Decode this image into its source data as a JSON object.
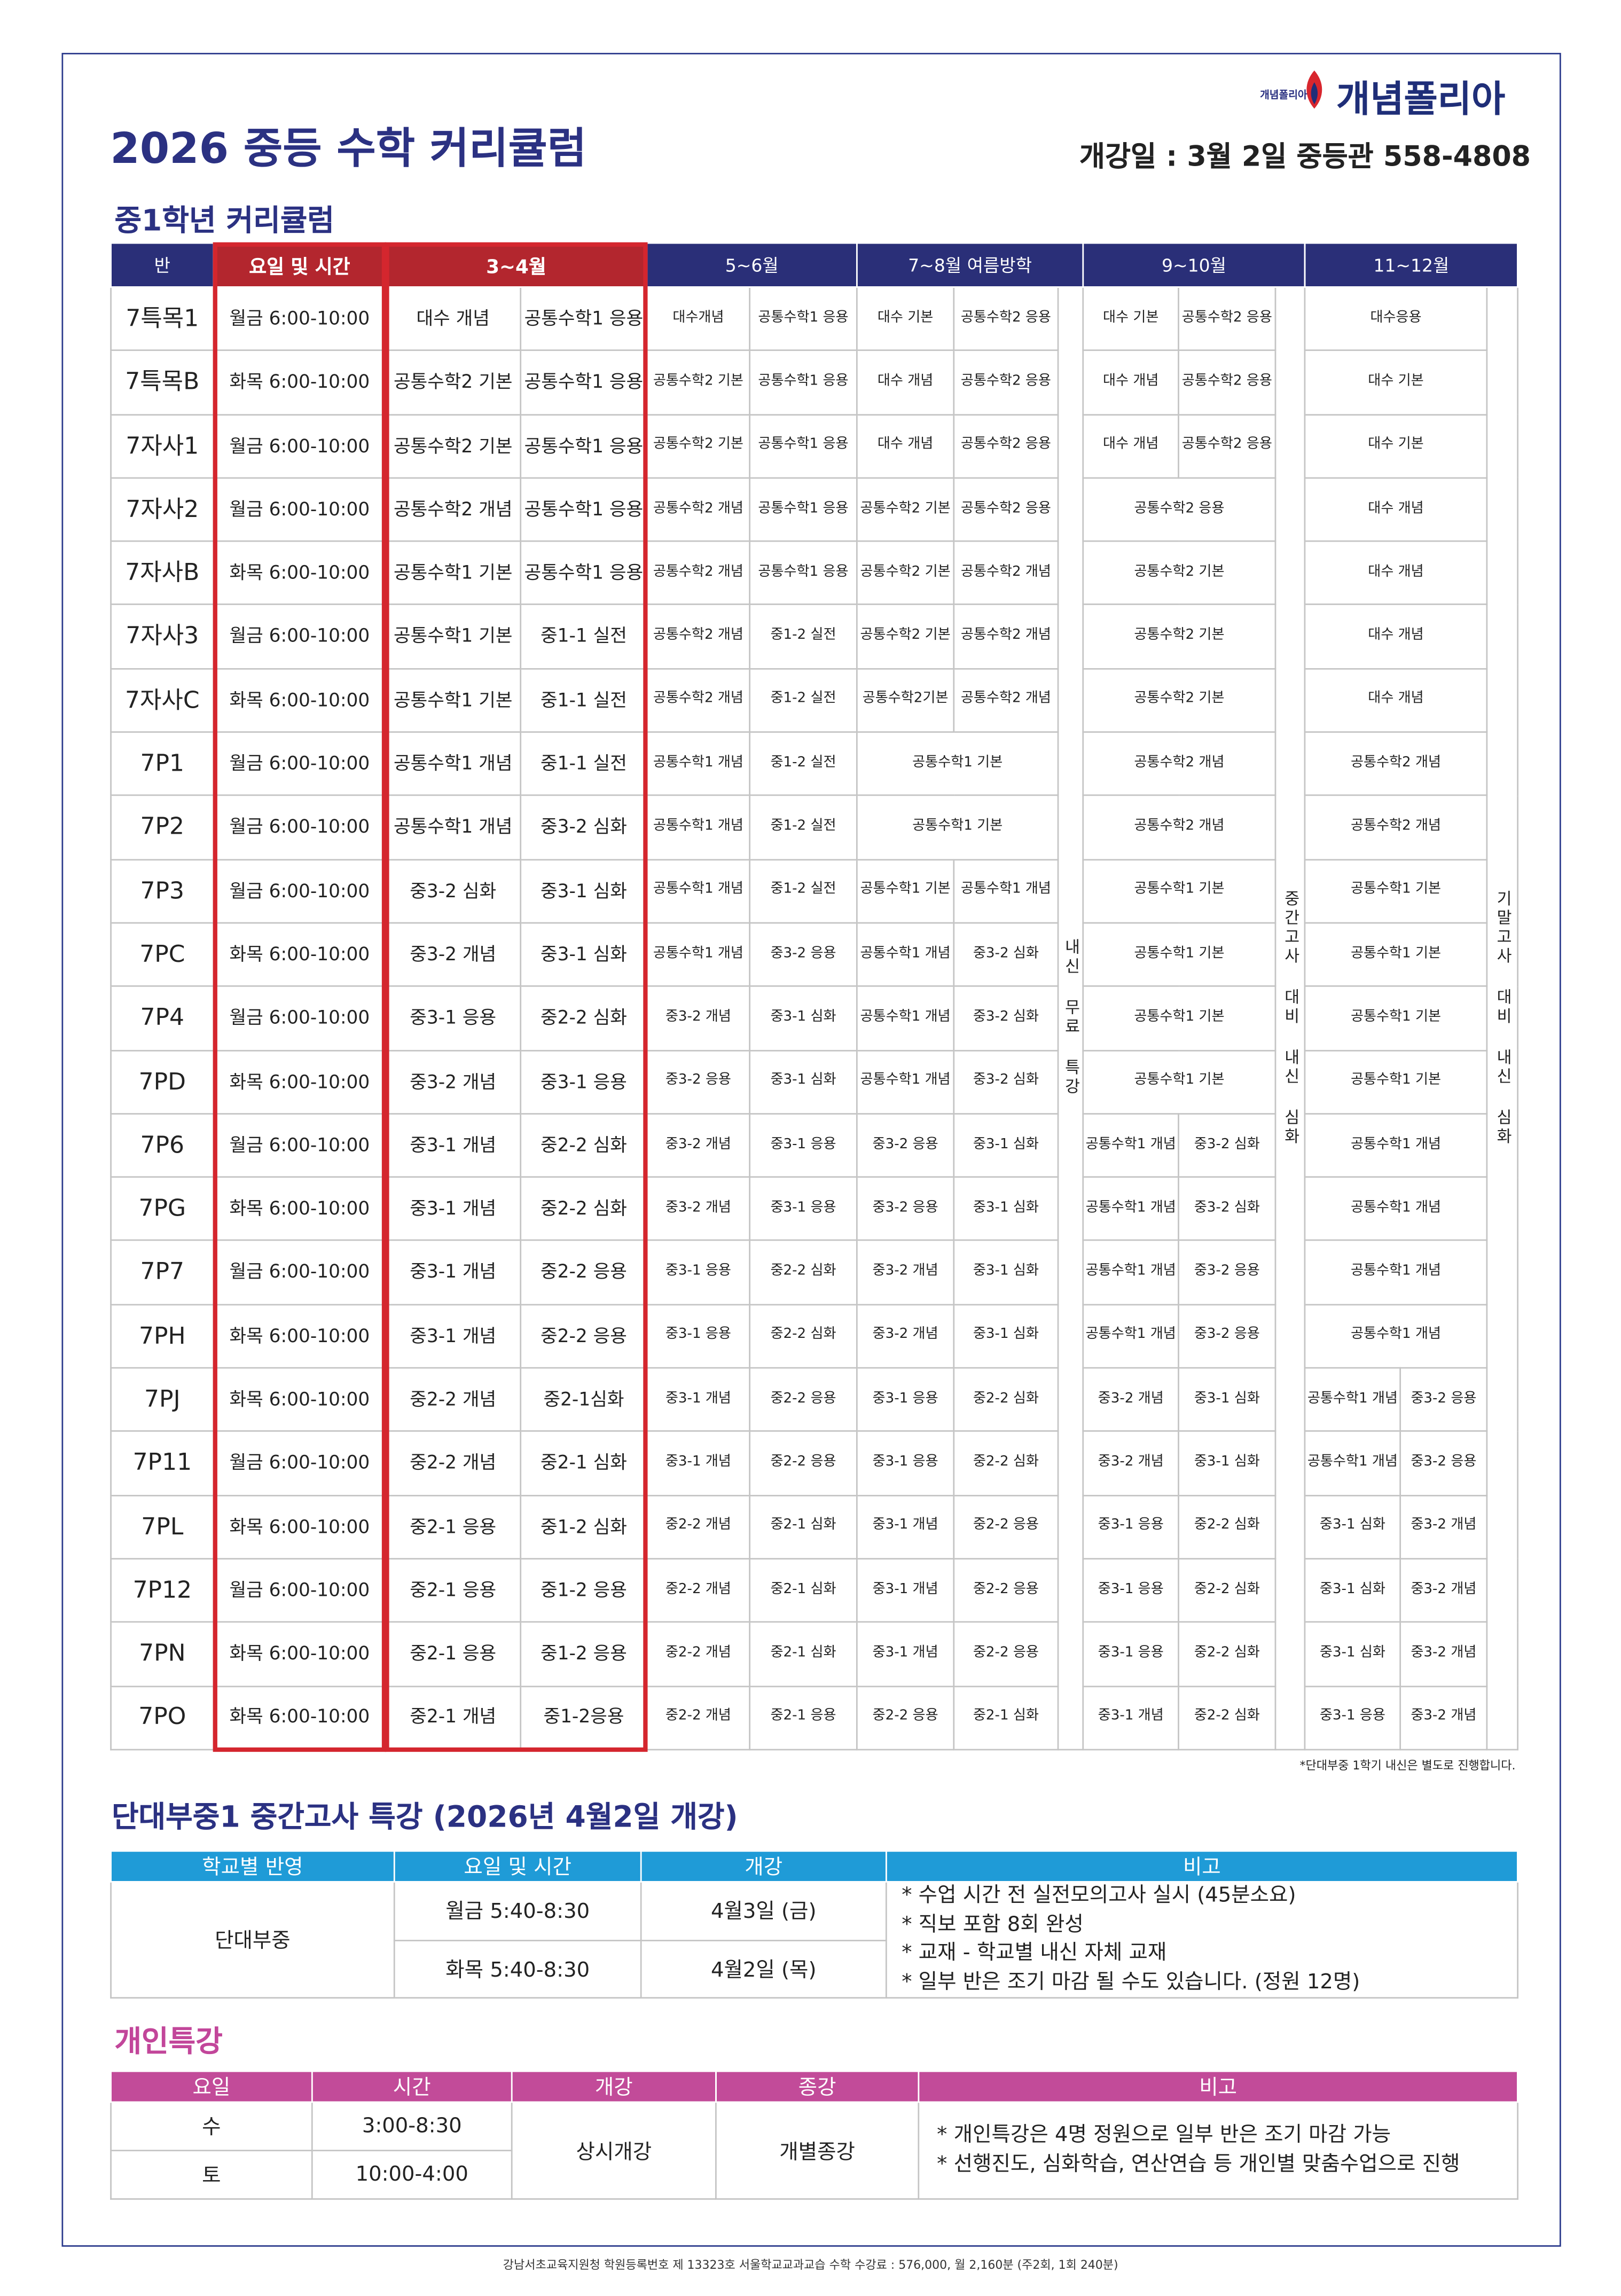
{
  "header": {
    "title": "2026 중등 수학 커리큘럼",
    "logo_small": "개념폴리아",
    "logo": "개념폴리아",
    "open_info": "개강일 : 3월 2일 중등관 558-4808"
  },
  "curriculum": {
    "title": "중1학년 커리큘럼",
    "columns": [
      "반",
      "요일 및 시간",
      "3~4월",
      "5~6월",
      "7~8월 여름방학",
      "9~10월",
      "11~12월"
    ],
    "vertical_notes": [
      "내신 무료 특강",
      "중간고사 대비 내신 심화",
      "기말고사 대비 내신 심화"
    ],
    "rows": [
      {
        "class": "7특목1",
        "time": "월금 6:00-10:00",
        "periods": [
          [
            "대수 개념",
            "공통수학1 응용"
          ],
          [
            "대수개념",
            "공통수학1 응용"
          ],
          [
            "대수 기본",
            "공통수학2 응용"
          ],
          [
            "대수 기본",
            "공통수학2 응용"
          ],
          [
            "대수응용"
          ]
        ]
      },
      {
        "class": "7특목B",
        "time": "화목 6:00-10:00",
        "periods": [
          [
            "공통수학2 기본",
            "공통수학1 응용"
          ],
          [
            "공통수학2 기본",
            "공통수학1 응용"
          ],
          [
            "대수 개념",
            "공통수학2 응용"
          ],
          [
            "대수 개념",
            "공통수학2 응용"
          ],
          [
            "대수 기본"
          ]
        ]
      },
      {
        "class": "7자사1",
        "time": "월금 6:00-10:00",
        "periods": [
          [
            "공통수학2 기본",
            "공통수학1 응용"
          ],
          [
            "공통수학2 기본",
            "공통수학1 응용"
          ],
          [
            "대수 개념",
            "공통수학2 응용"
          ],
          [
            "대수 개념",
            "공통수학2 응용"
          ],
          [
            "대수 기본"
          ]
        ]
      },
      {
        "class": "7자사2",
        "time": "월금 6:00-10:00",
        "periods": [
          [
            "공통수학2 개념",
            "공통수학1 응용"
          ],
          [
            "공통수학2 개념",
            "공통수학1 응용"
          ],
          [
            "공통수학2 기본",
            "공통수학2 응용"
          ],
          [
            "공통수학2 응용"
          ],
          [
            "대수 개념"
          ]
        ]
      },
      {
        "class": "7자사B",
        "time": "화목 6:00-10:00",
        "periods": [
          [
            "공통수학1 기본",
            "공통수학1 응용"
          ],
          [
            "공통수학2 개념",
            "공통수학1 응용"
          ],
          [
            "공통수학2 기본",
            "공통수학2 개념"
          ],
          [
            "공통수학2 기본"
          ],
          [
            "대수 개념"
          ]
        ]
      },
      {
        "class": "7자사3",
        "time": "월금 6:00-10:00",
        "periods": [
          [
            "공통수학1 기본",
            "중1-1 실전"
          ],
          [
            "공통수학2 개념",
            "중1-2 실전"
          ],
          [
            "공통수학2 기본",
            "공통수학2 개념"
          ],
          [
            "공통수학2 기본"
          ],
          [
            "대수 개념"
          ]
        ]
      },
      {
        "class": "7자사C",
        "time": "화목 6:00-10:00",
        "periods": [
          [
            "공통수학1 기본",
            "중1-1 실전"
          ],
          [
            "공통수학2 개념",
            "중1-2 실전"
          ],
          [
            "공통수학2기본",
            "공통수학2 개념"
          ],
          [
            "공통수학2 기본"
          ],
          [
            "대수 개념"
          ]
        ]
      },
      {
        "class": "7P1",
        "time": "월금 6:00-10:00",
        "periods": [
          [
            "공통수학1 개념",
            "중1-1 실전"
          ],
          [
            "공통수학1 개념",
            "중1-2 실전"
          ],
          [
            "공통수학1 기본"
          ],
          [
            "공통수학2 개념"
          ],
          [
            "공통수학2 개념"
          ]
        ]
      },
      {
        "class": "7P2",
        "time": "월금 6:00-10:00",
        "periods": [
          [
            "공통수학1 개념",
            "중3-2 심화"
          ],
          [
            "공통수학1 개념",
            "중1-2 실전"
          ],
          [
            "공통수학1 기본"
          ],
          [
            "공통수학2 개념"
          ],
          [
            "공통수학2 개념"
          ]
        ]
      },
      {
        "class": "7P3",
        "time": "월금 6:00-10:00",
        "periods": [
          [
            "중3-2 심화",
            "중3-1 심화"
          ],
          [
            "공통수학1 개념",
            "중1-2 실전"
          ],
          [
            "공통수학1 기본",
            "공통수학1 개념"
          ],
          [
            "공통수학1 기본"
          ],
          [
            "공통수학1 기본"
          ]
        ]
      },
      {
        "class": "7PC",
        "time": "화목 6:00-10:00",
        "periods": [
          [
            "중3-2 개념",
            "중3-1 심화"
          ],
          [
            "공통수학1 개념",
            "중3-2 응용"
          ],
          [
            "공통수학1 개념",
            "중3-2 심화"
          ],
          [
            "공통수학1 기본"
          ],
          [
            "공통수학1 기본"
          ]
        ]
      },
      {
        "class": "7P4",
        "time": "월금 6:00-10:00",
        "periods": [
          [
            "중3-1 응용",
            "중2-2 심화"
          ],
          [
            "중3-2 개념",
            "중3-1 심화"
          ],
          [
            "공통수학1 개념",
            "중3-2 심화"
          ],
          [
            "공통수학1 기본"
          ],
          [
            "공통수학1 기본"
          ]
        ]
      },
      {
        "class": "7PD",
        "time": "화목 6:00-10:00",
        "periods": [
          [
            "중3-2 개념",
            "중3-1 응용"
          ],
          [
            "중3-2 응용",
            "중3-1 심화"
          ],
          [
            "공통수학1 개념",
            "중3-2 심화"
          ],
          [
            "공통수학1 기본"
          ],
          [
            "공통수학1 기본"
          ]
        ]
      },
      {
        "class": "7P6",
        "time": "월금 6:00-10:00",
        "periods": [
          [
            "중3-1 개념",
            "중2-2 심화"
          ],
          [
            "중3-2 개념",
            "중3-1 응용"
          ],
          [
            "중3-2 응용",
            "중3-1 심화"
          ],
          [
            "공통수학1 개념",
            "중3-2 심화"
          ],
          [
            "공통수학1 개념"
          ]
        ]
      },
      {
        "class": "7PG",
        "time": "화목 6:00-10:00",
        "periods": [
          [
            "중3-1 개념",
            "중2-2 심화"
          ],
          [
            "중3-2 개념",
            "중3-1 응용"
          ],
          [
            "중3-2 응용",
            "중3-1 심화"
          ],
          [
            "공통수학1 개념",
            "중3-2 심화"
          ],
          [
            "공통수학1 개념"
          ]
        ]
      },
      {
        "class": "7P7",
        "time": "월금 6:00-10:00",
        "periods": [
          [
            "중3-1 개념",
            "중2-2 응용"
          ],
          [
            "중3-1 응용",
            "중2-2 심화"
          ],
          [
            "중3-2 개념",
            "중3-1 심화"
          ],
          [
            "공통수학1 개념",
            "중3-2 응용"
          ],
          [
            "공통수학1 개념"
          ]
        ]
      },
      {
        "class": "7PH",
        "time": "화목 6:00-10:00",
        "periods": [
          [
            "중3-1 개념",
            "중2-2 응용"
          ],
          [
            "중3-1 응용",
            "중2-2 심화"
          ],
          [
            "중3-2 개념",
            "중3-1 심화"
          ],
          [
            "공통수학1 개념",
            "중3-2 응용"
          ],
          [
            "공통수학1 개념"
          ]
        ]
      },
      {
        "class": "7PJ",
        "time": "화목 6:00-10:00",
        "periods": [
          [
            "중2-2 개념",
            "중2-1심화"
          ],
          [
            "중3-1 개념",
            "중2-2 응용"
          ],
          [
            "중3-1 응용",
            "중2-2 심화"
          ],
          [
            "중3-2 개념",
            "중3-1 심화"
          ],
          [
            "공통수학1 개념",
            "중3-2 응용"
          ]
        ]
      },
      {
        "class": "7P11",
        "time": "월금 6:00-10:00",
        "periods": [
          [
            "중2-2 개념",
            "중2-1 심화"
          ],
          [
            "중3-1 개념",
            "중2-2 응용"
          ],
          [
            "중3-1 응용",
            "중2-2 심화"
          ],
          [
            "중3-2 개념",
            "중3-1 심화"
          ],
          [
            "공통수학1 개념",
            "중3-2 응용"
          ]
        ]
      },
      {
        "class": "7PL",
        "time": "화목 6:00-10:00",
        "periods": [
          [
            "중2-1 응용",
            "중1-2 심화"
          ],
          [
            "중2-2 개념",
            "중2-1 심화"
          ],
          [
            "중3-1 개념",
            "중2-2 응용"
          ],
          [
            "중3-1 응용",
            "중2-2 심화"
          ],
          [
            "중3-1 심화",
            "중3-2 개념"
          ]
        ]
      },
      {
        "class": "7P12",
        "time": "월금 6:00-10:00",
        "periods": [
          [
            "중2-1 응용",
            "중1-2 응용"
          ],
          [
            "중2-2 개념",
            "중2-1 심화"
          ],
          [
            "중3-1 개념",
            "중2-2 응용"
          ],
          [
            "중3-1 응용",
            "중2-2 심화"
          ],
          [
            "중3-1 심화",
            "중3-2 개념"
          ]
        ]
      },
      {
        "class": "7PN",
        "time": "화목 6:00-10:00",
        "periods": [
          [
            "중2-1 응용",
            "중1-2 응용"
          ],
          [
            "중2-2 개념",
            "중2-1 심화"
          ],
          [
            "중3-1 개념",
            "중2-2 응용"
          ],
          [
            "중3-1 응용",
            "중2-2 심화"
          ],
          [
            "중3-1 심화",
            "중3-2 개념"
          ]
        ]
      },
      {
        "class": "7PO",
        "time": "화목 6:00-10:00",
        "periods": [
          [
            "중2-1 개념",
            "중1-2응용"
          ],
          [
            "중2-2 개념",
            "중2-1 응용"
          ],
          [
            "중2-2 응용",
            "중2-1 심화"
          ],
          [
            "중3-1 개념",
            "중2-2 심화"
          ],
          [
            "중3-1 응용",
            "중3-2 개념"
          ]
        ]
      }
    ],
    "note": "*단대부중 1학기 내신은 별도로 진행합니다."
  },
  "midterm": {
    "title": "단대부중1 중간고사 특강 (2026년 4월2일 개강)",
    "columns": [
      "학교별 반영",
      "요일 및 시간",
      "개강",
      "비고"
    ],
    "school": "단대부중",
    "sessions": [
      {
        "time": "월금 5:40-8:30",
        "start": "4월3일 (금)"
      },
      {
        "time": "화목 5:40-8:30",
        "start": "4월2일 (목)"
      }
    ],
    "remarks": [
      "* 수업 시간 전 실전모의고사 실시 (45분소요)",
      "* 직보 포함 8회 완성",
      "* 교재 - 학교별 내신 자체 교재",
      "* 일부 반은 조기 마감 될 수도 있습니다. (정원 12명)"
    ]
  },
  "personal": {
    "title": "개인특강",
    "columns": [
      "요일",
      "시간",
      "개강",
      "종강",
      "비고"
    ],
    "sessions": [
      {
        "day": "수",
        "time": "3:00-8:30"
      },
      {
        "day": "토",
        "time": "10:00-4:00"
      }
    ],
    "start": "상시개강",
    "end": "개별종강",
    "remarks": [
      "* 개인특강은 4명 정원으로 일부 반은 조기 마감 가능",
      "* 선행진도, 심화학습, 연산연습 등 개인별 맞춤수업으로 진행"
    ]
  },
  "footer": "강남서초교육지원청 학원등록번호 제 13323호 서울학교교과교습 수학 수강료 : 576,000, 월 2,160분 (주2회, 1회 240분)"
}
